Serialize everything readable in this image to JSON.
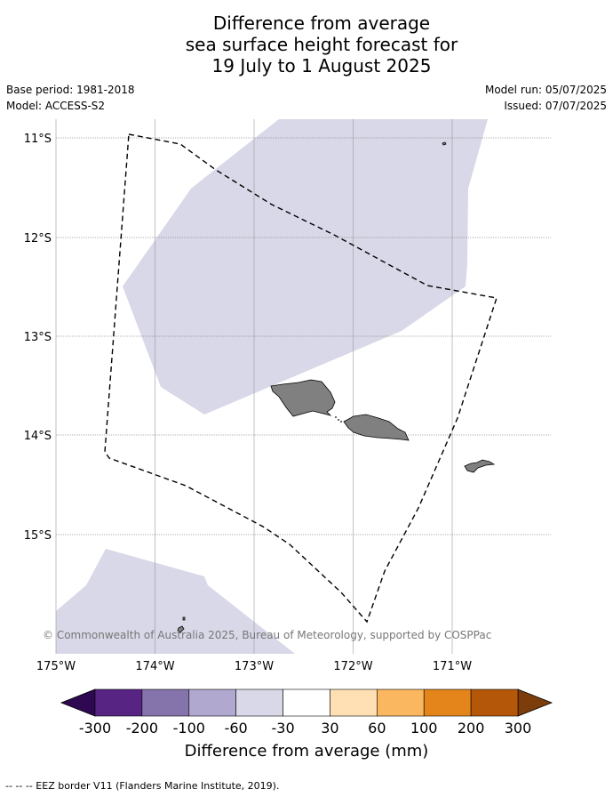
{
  "title_lines": [
    "Difference from average",
    "sea surface height forecast for",
    "19 July to 1 August 2025"
  ],
  "meta": {
    "base_period": "Base period: 1981-2018",
    "model": "Model: ACCESS-S2",
    "model_run": "Model run: 05/07/2025",
    "issued": "Issued: 07/07/2025"
  },
  "map": {
    "lat_labels": [
      "11°S",
      "12°S",
      "13°S",
      "14°S",
      "15°S"
    ],
    "lon_labels": [
      "175°W",
      "174°W",
      "173°W",
      "172°W",
      "171°W"
    ],
    "extent": {
      "lon": [
        -175,
        -170
      ],
      "lat": [
        -16.2,
        -10.8
      ]
    },
    "credits": "© Commonwealth of Australia 2025, Bureau of Meteorology, supported by COSPPac",
    "colors": {
      "land": "#808080",
      "anomaly_fill": "#d8d8e8",
      "grid": "#999999"
    }
  },
  "colorbar": {
    "tick_labels": [
      "-300",
      "-200",
      "-100",
      "-60",
      "-30",
      "30",
      "60",
      "100",
      "200",
      "300"
    ],
    "colors": [
      "#572483",
      "#8474ab",
      "#b1a8d0",
      "#d8d8e8",
      "#ffffff",
      "#fee0b4",
      "#fbb660",
      "#e3851a",
      "#b45709"
    ],
    "under_color": "#2e0851",
    "over_color": "#7c3d0b",
    "label": "Difference from average (mm)"
  },
  "footer": "--  --  -- EEZ border V11 (Flanders Marine Institute, 2019)."
}
